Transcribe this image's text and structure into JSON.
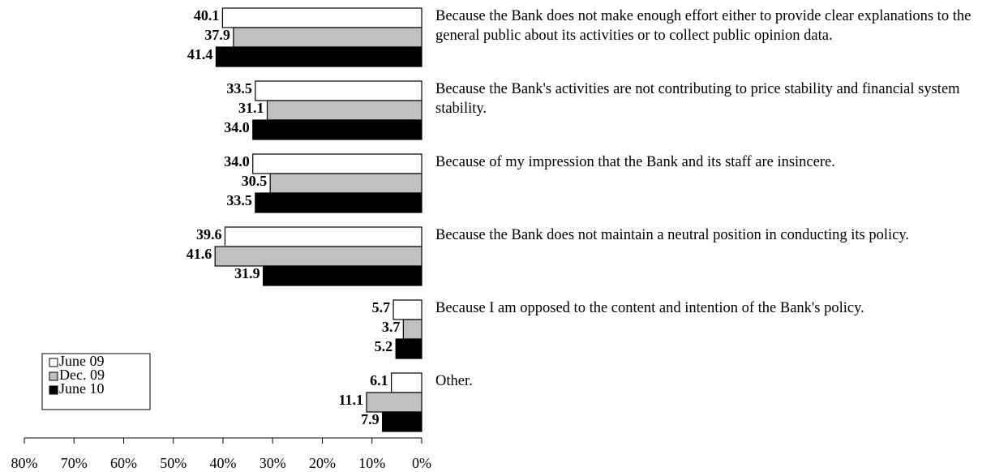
{
  "chart_data": {
    "type": "bar",
    "orientation": "horizontal",
    "categories": [
      "Because the Bank does not make enough effort either to provide clear explanations to the general public about its activities or to collect public opinion data.",
      "Because the Bank's activities are not contributing to price stability and financial system stability.",
      "Because of my impression that the Bank and its staff are insincere.",
      "Because the Bank does not maintain a neutral position in conducting its policy.",
      "Because I am opposed to the content and intention of the Bank's policy.",
      "Other."
    ],
    "series": [
      {
        "name": "June 09",
        "color": "#ffffff",
        "values": [
          40.1,
          33.5,
          34.0,
          39.6,
          5.7,
          6.1
        ],
        "value_labels": [
          "40.1",
          "33.5",
          "34.0",
          "39.6",
          "5.7",
          "6.1"
        ]
      },
      {
        "name": "Dec. 09",
        "color": "#c0c0c0",
        "values": [
          37.9,
          31.1,
          30.5,
          41.6,
          3.7,
          11.1
        ],
        "value_labels": [
          "37.9",
          "31.1",
          "30.5",
          "41.6",
          "3.7",
          "11.1"
        ]
      },
      {
        "name": "June 10",
        "color": "#000000",
        "values": [
          41.4,
          34.0,
          33.5,
          31.9,
          5.2,
          7.9
        ],
        "value_labels": [
          "41.4",
          "34.0",
          "33.5",
          "31.9",
          "5.2",
          "7.9"
        ]
      }
    ],
    "xlim": [
      80,
      0
    ],
    "xticks": [
      {
        "value": 80,
        "label": "80%"
      },
      {
        "value": 70,
        "label": "70%"
      },
      {
        "value": 60,
        "label": "60%"
      },
      {
        "value": 50,
        "label": "50%"
      },
      {
        "value": 40,
        "label": "40%"
      },
      {
        "value": 30,
        "label": "30%"
      },
      {
        "value": 20,
        "label": "20%"
      },
      {
        "value": 10,
        "label": "10%"
      },
      {
        "value": 0,
        "label": "0%"
      }
    ],
    "grid": false,
    "legend": "lower left"
  }
}
